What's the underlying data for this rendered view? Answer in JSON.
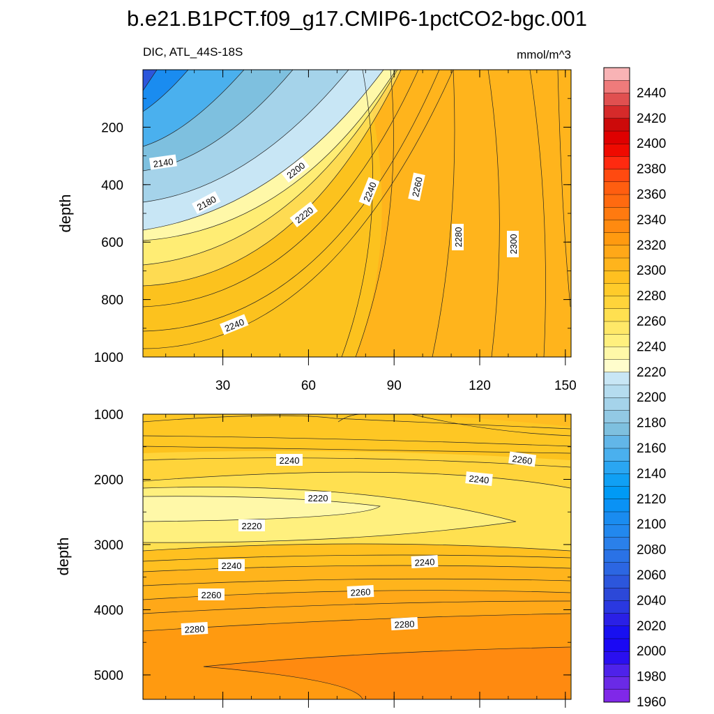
{
  "title": "b.e21.B1PCT.f09_g17.CMIP6-1pctCO2-bgc.001",
  "chart_data": {
    "type": "contour",
    "variable_label": "DIC, ATL_44S-18S",
    "units": "mmol/m^3",
    "x_ticks": [
      "30",
      "60",
      "90",
      "120",
      "150"
    ],
    "x_range": [
      2,
      152
    ],
    "colorbar": {
      "labels": [
        "2440",
        "2420",
        "2400",
        "2380",
        "2360",
        "2340",
        "2320",
        "2300",
        "2280",
        "2260",
        "2240",
        "2220",
        "2200",
        "2180",
        "2160",
        "2140",
        "2120",
        "2100",
        "2080",
        "2060",
        "2040",
        "2020",
        "2000",
        "1980",
        "1960"
      ],
      "colors": [
        "#f8b3b5",
        "#ef7b7b",
        "#e05050",
        "#d62a2a",
        "#cc0a0a",
        "#df0000",
        "#ef0a00",
        "#ff2a10",
        "#ff4a10",
        "#ff5e10",
        "#ff6a10",
        "#ff7a10",
        "#ff8a10",
        "#ff9a10",
        "#ffa818",
        "#ffb41c",
        "#ffc020",
        "#ffcb2a",
        "#ffd43a",
        "#ffe050",
        "#ffe868",
        "#fff07e",
        "#fff8a8",
        "#fffdcc",
        "#c8e6f5",
        "#b5dcef",
        "#a5d3ea",
        "#92c9e4",
        "#7ec0df",
        "#62b6e8",
        "#4ab0ee",
        "#2aa6f2",
        "#10a0f4",
        "#009af5",
        "#0a92f5",
        "#1a8cf0",
        "#2288ee",
        "#2a80ea",
        "#2a72e6",
        "#2c66e2",
        "#2c56dc",
        "#2c48d8",
        "#2a38e0",
        "#2a20e6",
        "#1810f0",
        "#1a08f4",
        "#2a0ff0",
        "#4e22ea",
        "#6a2ae6",
        "#8028e8"
      ]
    },
    "top_panel": {
      "ylabel": "depth",
      "y_ticks": [
        "200",
        "400",
        "600",
        "800",
        "1000"
      ],
      "y_range": [
        0,
        1000
      ],
      "contour_labels": [
        "2140",
        "2180",
        "2200",
        "2220",
        "2240",
        "2260",
        "2280",
        "2300",
        "2240"
      ]
    },
    "bottom_panel": {
      "ylabel": "depth",
      "y_ticks": [
        "1000",
        "2000",
        "3000",
        "4000",
        "5000"
      ],
      "y_range": [
        1000,
        5375
      ],
      "contour_labels": [
        "2240",
        "2260",
        "2240",
        "2220",
        "2220",
        "2240",
        "2240",
        "2260",
        "2260",
        "2280",
        "2280"
      ]
    }
  }
}
